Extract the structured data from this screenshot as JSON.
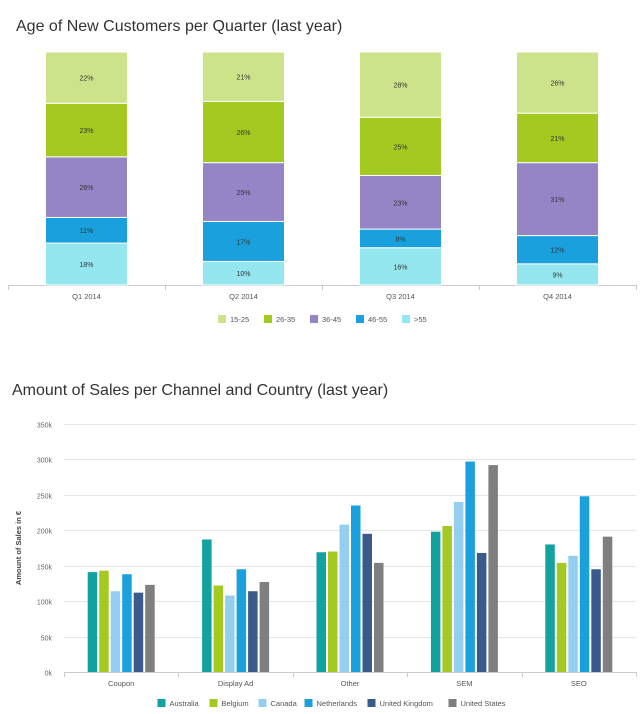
{
  "chart_data": [
    {
      "type": "bar",
      "stacked": true,
      "title": "Age of New Customers per Quarter (last year)",
      "categories": [
        "Q1 2014",
        "Q2 2014",
        "Q3 2014",
        "Q4 2014"
      ],
      "series": [
        {
          "name": "15-25",
          "color": "#cde38a",
          "values": [
            22,
            21,
            28,
            26
          ]
        },
        {
          "name": "26-35",
          "color": "#a4c920",
          "values": [
            23,
            26,
            25,
            21
          ]
        },
        {
          "name": "36-45",
          "color": "#9585c7",
          "values": [
            26,
            25,
            23,
            31
          ]
        },
        {
          "name": "46-55",
          "color": "#1aa1dd",
          "values": [
            11,
            17,
            8,
            12
          ]
        },
        {
          "name": ">55",
          "color": "#94e7ee",
          "values": [
            18,
            10,
            16,
            9
          ]
        }
      ],
      "value_suffix": "%",
      "legend_position": "bottom-center"
    },
    {
      "type": "bar",
      "title": "Amount of Sales per Channel and Country (last year)",
      "ylabel": "Amount of Sales in €",
      "ylim": [
        0,
        350000
      ],
      "yticks": [
        "0k",
        "50k",
        "100k",
        "150k",
        "200k",
        "250k",
        "300k",
        "350k"
      ],
      "grid": true,
      "categories": [
        "Coupon",
        "Display Ad",
        "Other",
        "SEM",
        "SEO"
      ],
      "series": [
        {
          "name": "Australia",
          "color": "#12a3a0",
          "values": [
            141000,
            187000,
            169000,
            198000,
            180000
          ]
        },
        {
          "name": "Belgium",
          "color": "#a4c920",
          "values": [
            143000,
            122000,
            170000,
            206000,
            154000
          ]
        },
        {
          "name": "Canada",
          "color": "#94cff1",
          "values": [
            114000,
            108000,
            208000,
            240000,
            164000
          ]
        },
        {
          "name": "Netherlands",
          "color": "#1aa1dd",
          "values": [
            138000,
            145000,
            235000,
            297000,
            248000
          ]
        },
        {
          "name": "United Kingdom",
          "color": "#3a5a8c",
          "values": [
            112000,
            114000,
            195000,
            168000,
            145000
          ]
        },
        {
          "name": "United States",
          "color": "#7f7f7f",
          "values": [
            123000,
            127000,
            154000,
            292000,
            191000
          ]
        }
      ],
      "legend_position": "bottom-center"
    }
  ]
}
